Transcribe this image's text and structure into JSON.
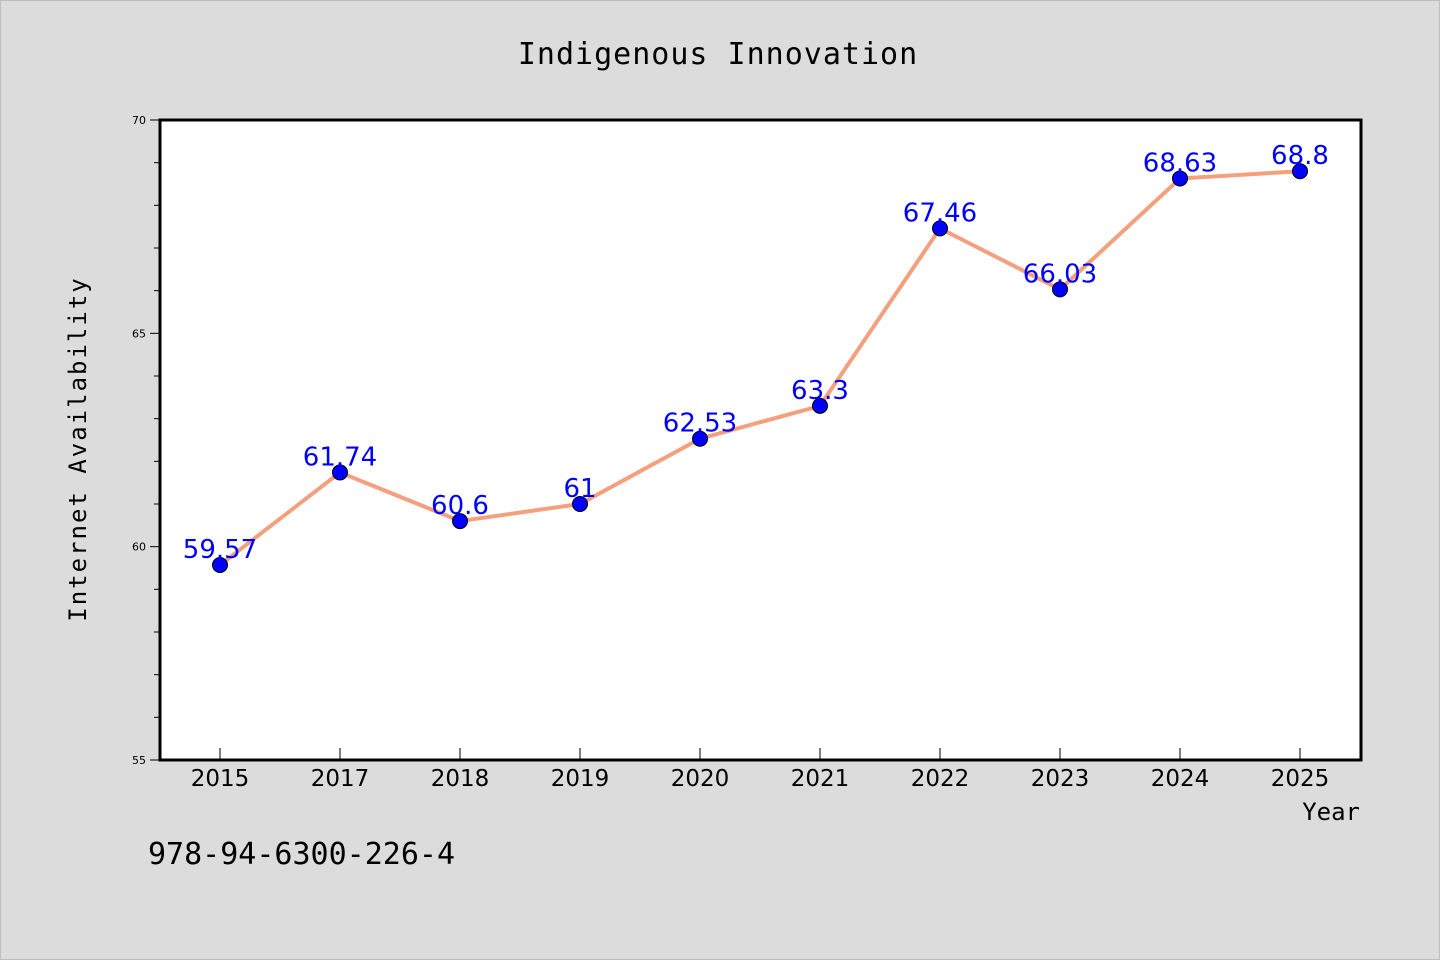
{
  "chart_data": {
    "type": "line",
    "title": "Indigenous Innovation",
    "xlabel": "Year",
    "ylabel": "Internet Availability",
    "categories": [
      "2015",
      "2017",
      "2018",
      "2019",
      "2020",
      "2021",
      "2022",
      "2023",
      "2024",
      "2025"
    ],
    "series": [
      {
        "values": [
          59.57,
          61.74,
          60.6,
          61,
          62.53,
          63.3,
          67.46,
          66.03,
          68.63,
          68.8
        ],
        "labels": [
          "59.57",
          "61.74",
          "60.6",
          "61",
          "62.53",
          "63.3",
          "67.46",
          "66.03",
          "68.63",
          "68.8"
        ],
        "line_color": "#f4a07e",
        "marker_color": "#0000ff",
        "label_color": "#0000ff"
      }
    ],
    "ylim": [
      55,
      70
    ],
    "yticks": [
      "55",
      "60",
      "65",
      "70"
    ],
    "grid": false,
    "legend": "none"
  },
  "footer": {
    "isbn": "978-94-6300-226-4"
  }
}
